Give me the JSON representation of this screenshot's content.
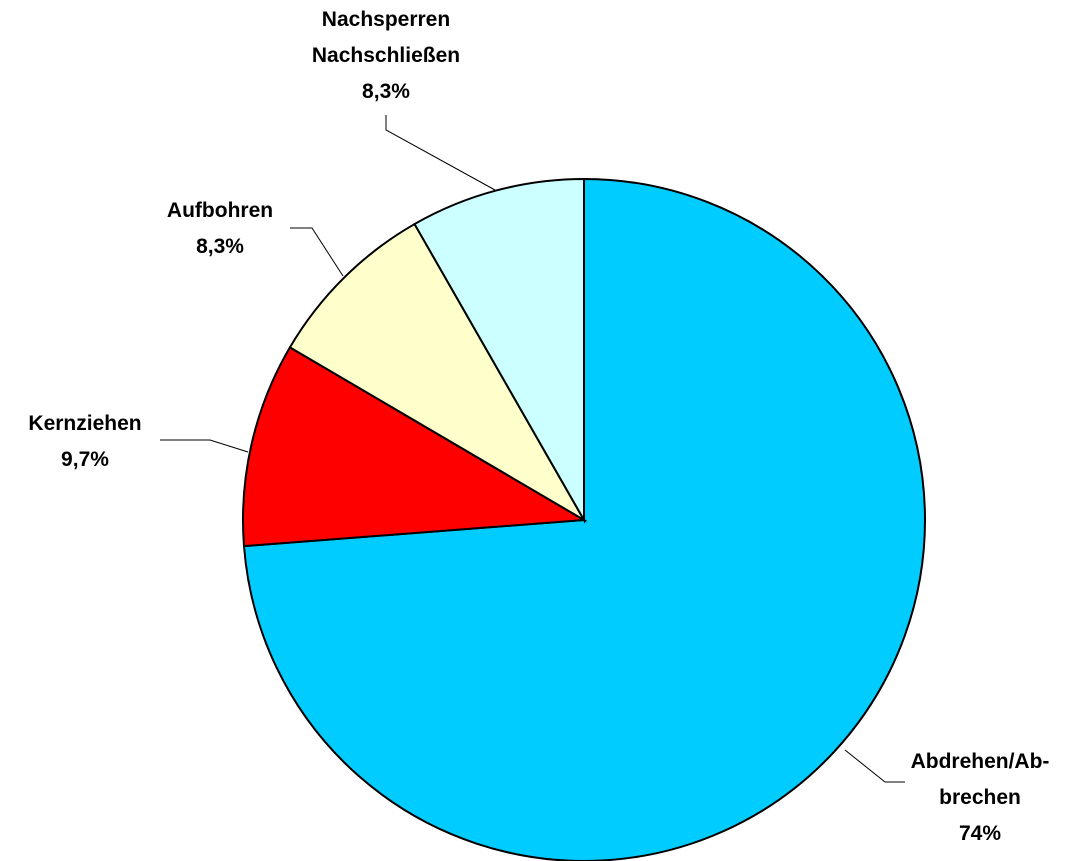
{
  "chart_data": {
    "type": "pie",
    "categories": [
      "Abdrehen/Ab-\nbrechen",
      "Kernziehen",
      "Aufbohren",
      "Nachsperren\nNachschließen"
    ],
    "values": [
      74,
      9.7,
      8.3,
      8.3
    ],
    "value_labels": [
      "74%",
      "9,7%",
      "8,3%",
      "8,3%"
    ],
    "colors": [
      "#00ccff",
      "#ff0000",
      "#ffffcc",
      "#ccffff"
    ]
  }
}
